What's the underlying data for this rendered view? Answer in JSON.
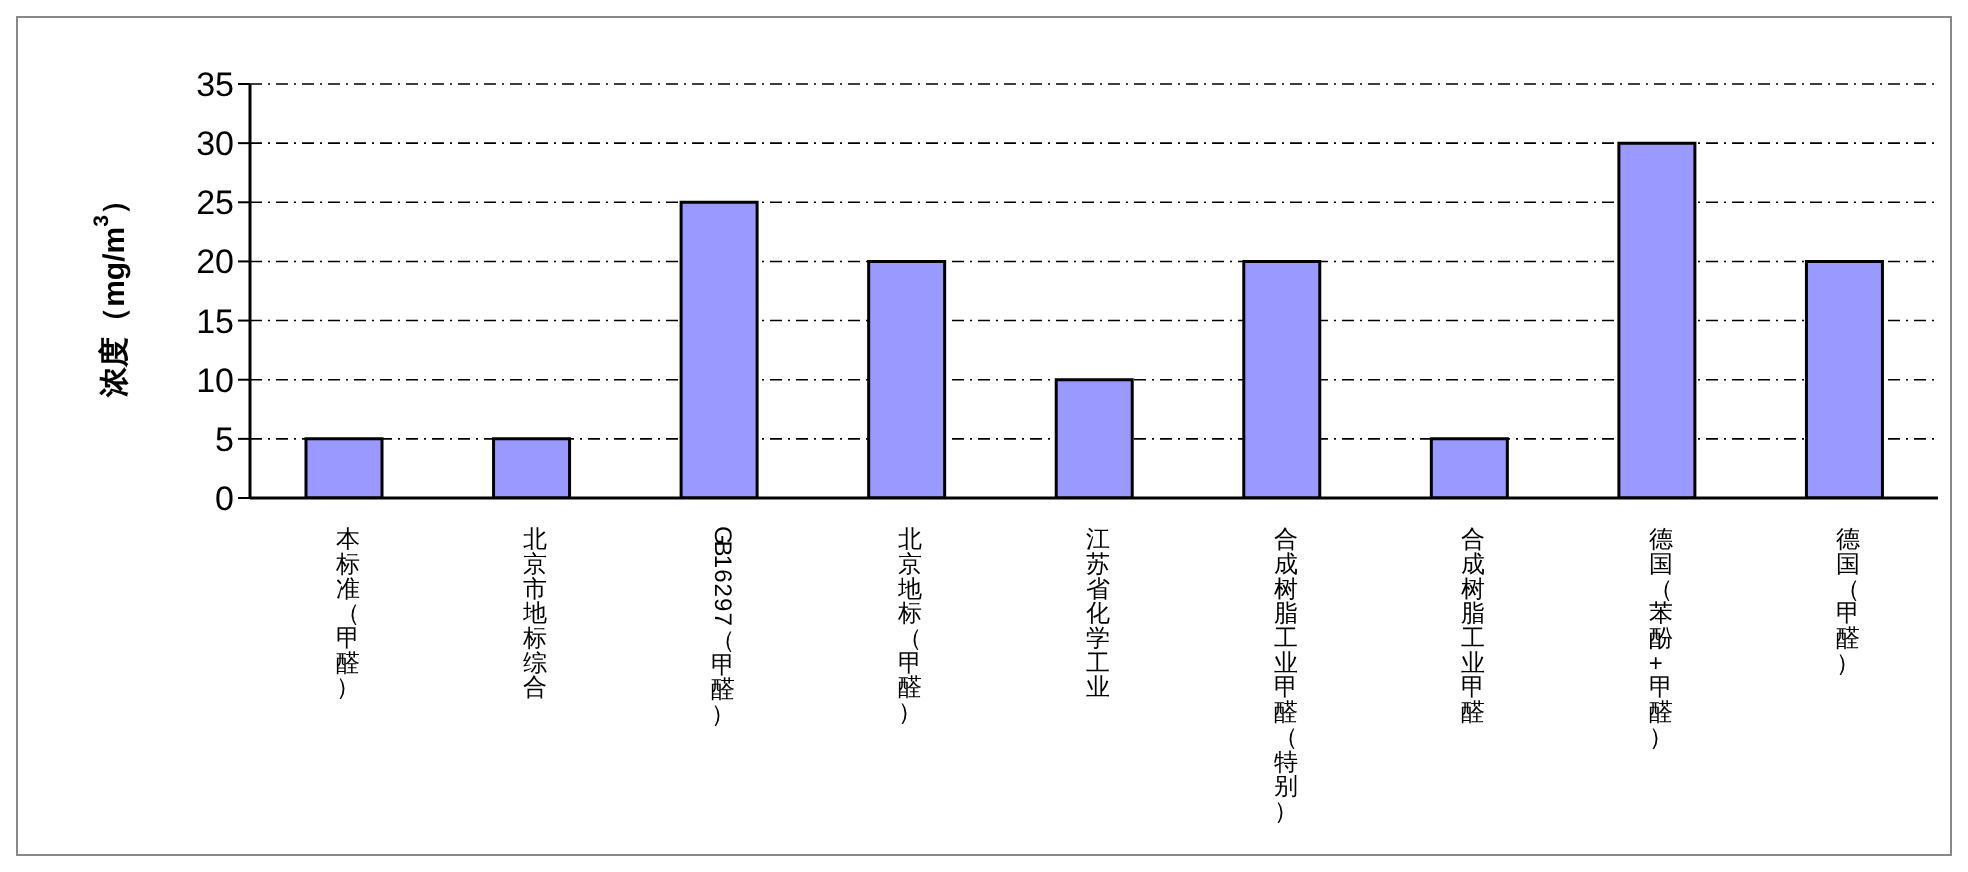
{
  "chart_data": {
    "type": "bar",
    "ylabel": "浓度（mg/m$^{3}$）",
    "categories": [
      "本标准（甲醛）",
      "北京市地标综合",
      "GB16297（甲醛）",
      "北京地标（甲醛）",
      "江苏省化学工业",
      "合成树脂工业甲醛（特别）",
      "合成树脂工业甲醛",
      "德国（苯酚+甲醛）",
      "德国（甲醛）"
    ],
    "values": [
      5,
      5,
      25,
      20,
      10,
      20,
      5,
      30,
      20
    ],
    "color": "#9999ff",
    "ylim": [
      0,
      35
    ],
    "yticks": [
      0,
      5,
      10,
      15,
      20,
      25,
      30,
      35
    ],
    "grid": "y"
  }
}
